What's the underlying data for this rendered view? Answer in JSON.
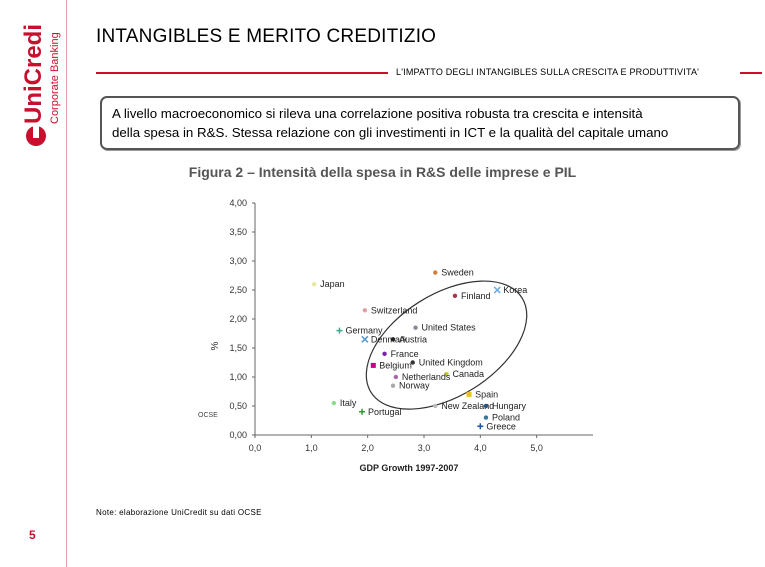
{
  "brand": {
    "name": "UniCredit",
    "division": "Corporate Banking",
    "color": "#c8102e"
  },
  "header": {
    "title": "INTANGIBLES E MERITO CREDITIZIO",
    "subtitle": "L'IMPATTO DEGLI INTANGIBLES SULLA CRESCITA E PRODUTTIVITA'"
  },
  "callout": {
    "line1": "A livello macroeconomico si rileva una correlazione positiva robusta tra crescita e intensità",
    "line2": "della spesa in R&S. Stessa relazione con gli investimenti in ICT e la qualità del capitale umano"
  },
  "figure_title": "Figura 2 – Intensità della spesa in R&S delle imprese e PIL",
  "chart_data": {
    "type": "scatter",
    "title": "Figura 2 – Intensità della spesa in R&S delle imprese e PIL",
    "xlabel": "GDP Growth 1997-2007",
    "ylabel": "%",
    "ylabel_extra": "OCSE",
    "xlim": [
      0,
      6
    ],
    "ylim": [
      0,
      4
    ],
    "x_ticks": [
      "0,0",
      "1,0",
      "2,0",
      "3,0",
      "4,0",
      "5,0"
    ],
    "x_tick_values": [
      0,
      1,
      2,
      3,
      4,
      5
    ],
    "y_ticks": [
      "0,00",
      "0,50",
      "1,00",
      "1,50",
      "2,00",
      "2,50",
      "3,00",
      "3,50",
      "4,00"
    ],
    "y_tick_values": [
      0,
      0.5,
      1,
      1.5,
      2,
      2.5,
      3,
      3.5,
      4
    ],
    "ellipse": {
      "cx": 3.4,
      "cy": 1.55,
      "rx": 2.55,
      "ry": 1.0,
      "rotation_deg": 32
    },
    "points": [
      {
        "label": "Japan",
        "x": 1.05,
        "y": 2.6,
        "color": "#e8e8a0",
        "marker": "dot"
      },
      {
        "label": "Sweden",
        "x": 3.2,
        "y": 2.8,
        "color": "#d08040",
        "marker": "dot"
      },
      {
        "label": "Korea",
        "x": 4.3,
        "y": 2.5,
        "color": "#66aadd",
        "marker": "x"
      },
      {
        "label": "Finland",
        "x": 3.55,
        "y": 2.4,
        "color": "#aa3344",
        "marker": "dot"
      },
      {
        "label": "Switzerland",
        "x": 1.95,
        "y": 2.15,
        "color": "#e0a0a0",
        "marker": "dot"
      },
      {
        "label": "United States",
        "x": 2.85,
        "y": 1.85,
        "color": "#888899",
        "marker": "dot"
      },
      {
        "label": "Germany",
        "x": 1.5,
        "y": 1.8,
        "color": "#33aa88",
        "marker": "plus"
      },
      {
        "label": "Austria",
        "x": 2.45,
        "y": 1.65,
        "color": "#222222",
        "marker": "dot"
      },
      {
        "label": "Denmark",
        "x": 1.95,
        "y": 1.65,
        "color": "#5599cc",
        "marker": "x"
      },
      {
        "label": "France",
        "x": 2.3,
        "y": 1.4,
        "color": "#7722aa",
        "marker": "dot"
      },
      {
        "label": "United Kingdom",
        "x": 2.8,
        "y": 1.25,
        "color": "#333333",
        "marker": "dot"
      },
      {
        "label": "Belgium",
        "x": 2.1,
        "y": 1.2,
        "color": "#cc0088",
        "marker": "square"
      },
      {
        "label": "Canada",
        "x": 3.4,
        "y": 1.05,
        "color": "#cccc33",
        "marker": "dot"
      },
      {
        "label": "Netherlands",
        "x": 2.5,
        "y": 1.0,
        "color": "#aa66aa",
        "marker": "dot"
      },
      {
        "label": "Norway",
        "x": 2.45,
        "y": 0.85,
        "color": "#aaaaaa",
        "marker": "dot"
      },
      {
        "label": "Spain",
        "x": 3.8,
        "y": 0.7,
        "color": "#e8c020",
        "marker": "square"
      },
      {
        "label": "Italy",
        "x": 1.4,
        "y": 0.55,
        "color": "#88dd88",
        "marker": "dot"
      },
      {
        "label": "New Zealand",
        "x": 3.2,
        "y": 0.5,
        "color": "#bbbbbb",
        "marker": "dot"
      },
      {
        "label": "Hungary",
        "x": 4.1,
        "y": 0.5,
        "color": "#225588",
        "marker": "dot"
      },
      {
        "label": "Portugal",
        "x": 1.9,
        "y": 0.4,
        "color": "#339933",
        "marker": "plus"
      },
      {
        "label": "Poland",
        "x": 4.1,
        "y": 0.3,
        "color": "#337799",
        "marker": "dot"
      },
      {
        "label": "Greece",
        "x": 4.0,
        "y": 0.15,
        "color": "#2255aa",
        "marker": "plus"
      }
    ]
  },
  "footer": {
    "note": "Note: elaborazione UniCredit su dati OCSE",
    "page": "5"
  }
}
